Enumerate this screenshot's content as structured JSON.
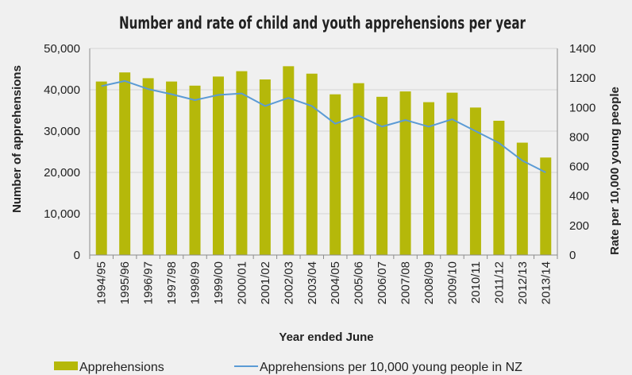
{
  "chart_data": {
    "type": "bar",
    "title": "Number and rate of child and youth apprehensions per year",
    "xlabel": "Year ended June",
    "ylabel": "Number of apprehensions",
    "y2label": "Rate per 10,000 young people",
    "categories": [
      "1994/95",
      "1995/96",
      "1996/97",
      "1997/98",
      "1998/99",
      "1999/00",
      "2000/01",
      "2001/02",
      "2002/03",
      "2003/04",
      "2004/05",
      "2005/06",
      "2006/07",
      "2007/08",
      "2008/09",
      "2009/10",
      "2010/11",
      "2011/12",
      "2012/13",
      "2013/14"
    ],
    "ylim": [
      0,
      50000
    ],
    "yticks": [
      "0",
      "10,000",
      "20,000",
      "30,000",
      "40,000",
      "50,000"
    ],
    "y2lim": [
      0,
      1400
    ],
    "y2ticks": [
      "0",
      "200",
      "400",
      "600",
      "800",
      "1000",
      "1200",
      "1400"
    ],
    "grid": true,
    "legend_position": "bottom",
    "series": [
      {
        "name": "Apprehensions",
        "type": "bar",
        "axis": "left",
        "color": "#b5b80a",
        "values": [
          42000,
          44200,
          42800,
          42000,
          41000,
          43200,
          44500,
          42500,
          45700,
          43900,
          38900,
          41600,
          38300,
          39600,
          37000,
          39300,
          35700,
          32500,
          27200,
          23600
        ]
      },
      {
        "name": "Apprehensions per 10,000 young people in NZ",
        "type": "line",
        "axis": "right",
        "color": "#5b9bd5",
        "values": [
          1145,
          1180,
          1125,
          1090,
          1050,
          1085,
          1095,
          1010,
          1065,
          1010,
          890,
          945,
          870,
          915,
          870,
          920,
          840,
          760,
          640,
          560
        ]
      }
    ]
  }
}
